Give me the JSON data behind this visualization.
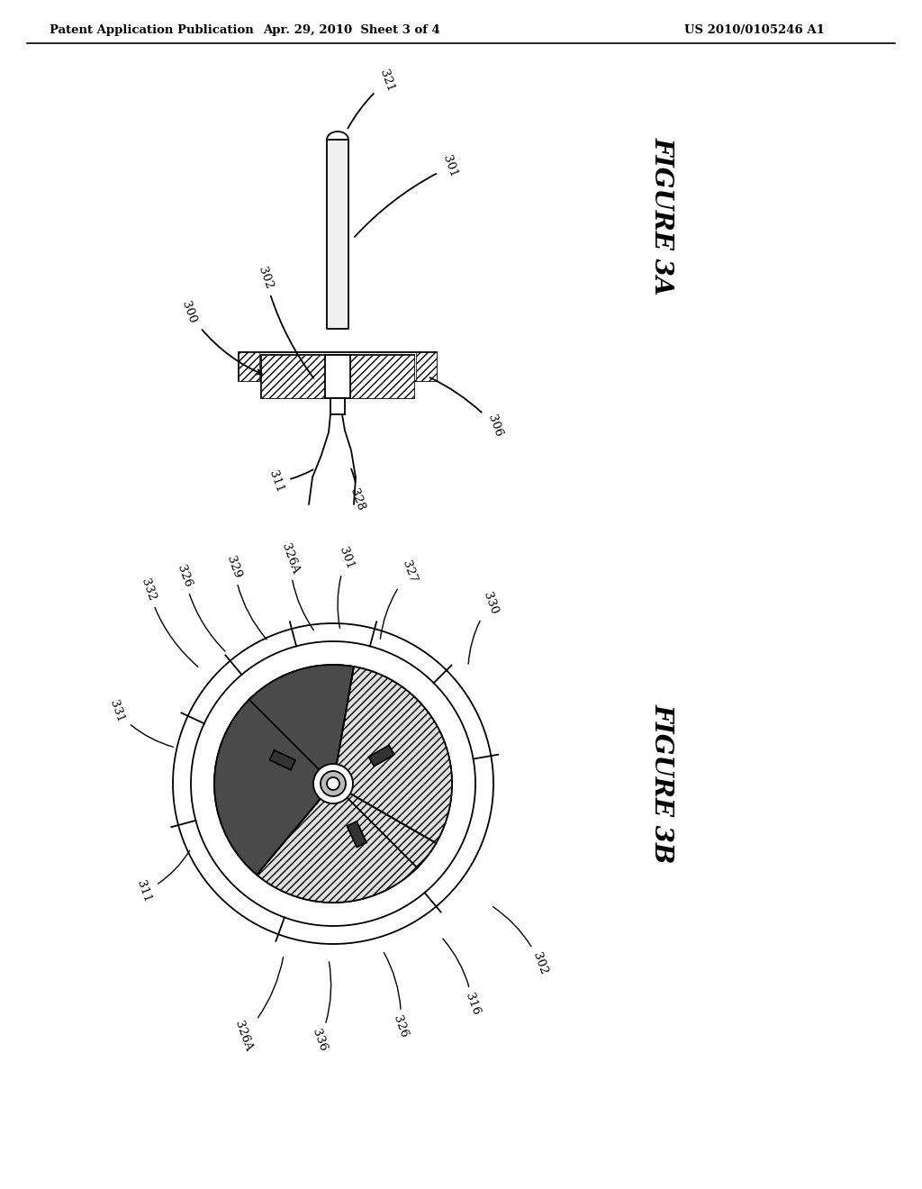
{
  "header_left": "Patent Application Publication",
  "header_center": "Apr. 29, 2010  Sheet 3 of 4",
  "header_right": "US 2010/0105246 A1",
  "fig3a_label": "FIGURE 3A",
  "fig3b_label": "FIGURE 3B",
  "bg_color": "#ffffff",
  "line_color": "#000000"
}
